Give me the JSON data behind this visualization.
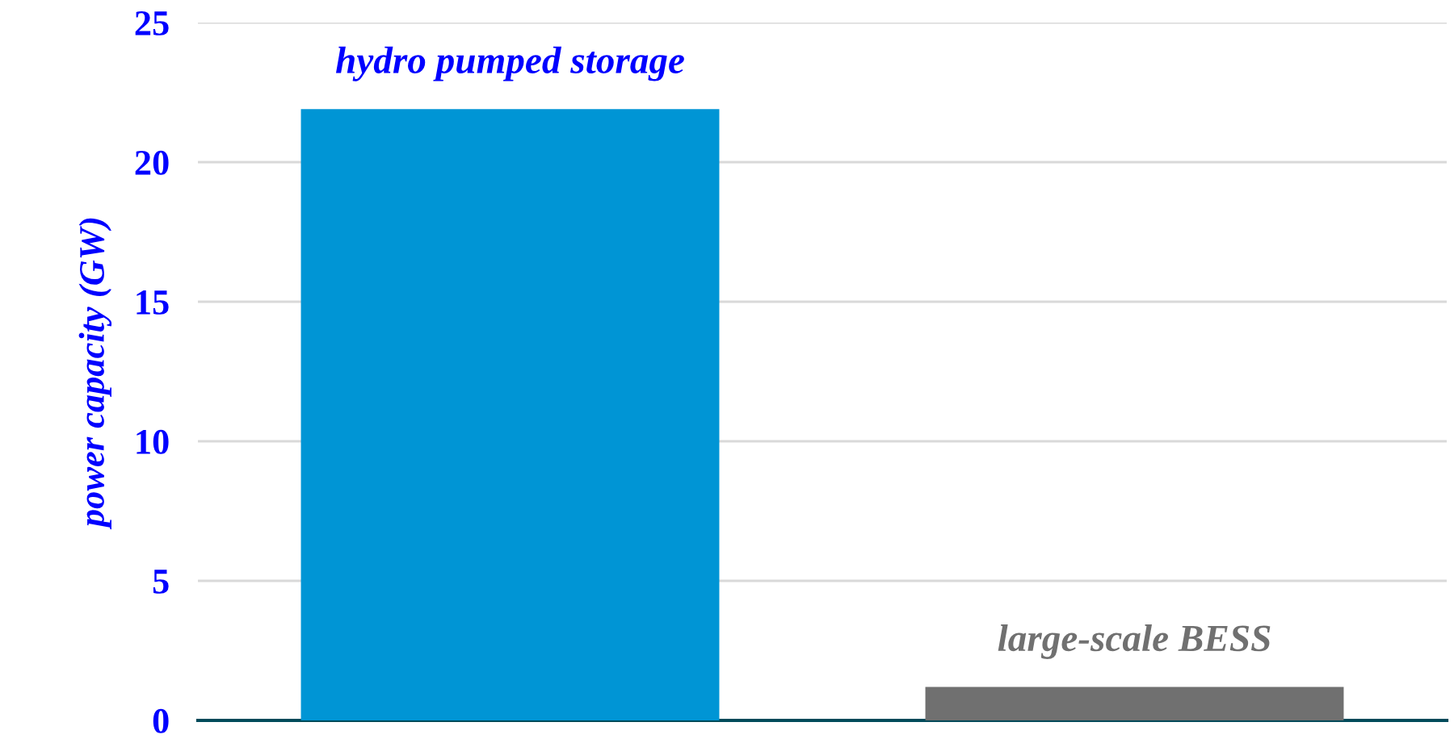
{
  "chart_data": {
    "type": "bar",
    "categories": [
      "hydro pumped storage",
      "large-scale BESS"
    ],
    "values": [
      21.9,
      1.2
    ],
    "colors": [
      "#0095d5",
      "#707070"
    ],
    "ylabel": "power capacity (GW)",
    "ylim": [
      0,
      25
    ],
    "yticks": [
      0,
      5,
      10,
      15,
      20,
      25
    ],
    "grid": "y",
    "legend": false
  }
}
